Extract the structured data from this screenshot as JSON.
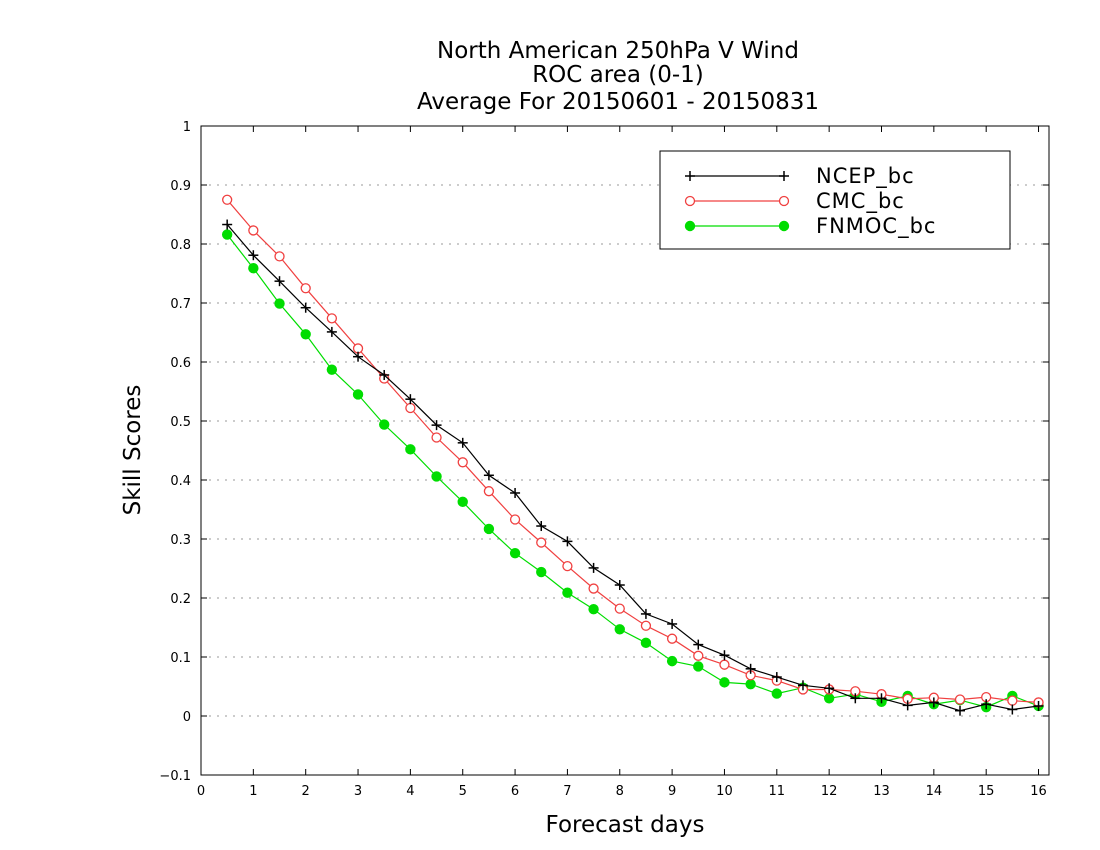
{
  "chart_data": {
    "type": "line",
    "title": [
      "North American 250hPa V Wind",
      "ROC area (0-1)",
      "Average For 20150601 - 20150831"
    ],
    "xlabel": "Forecast days",
    "ylabel": "Skill Scores",
    "xlim": [
      0,
      16.2
    ],
    "ylim": [
      -0.1,
      1
    ],
    "xticks": [
      "0",
      "1",
      "2",
      "3",
      "4",
      "5",
      "6",
      "7",
      "8",
      "9",
      "10",
      "11",
      "12",
      "13",
      "14",
      "15",
      "16"
    ],
    "yticks": [
      "−0.1",
      "0",
      "0.1",
      "0.2",
      "0.3",
      "0.4",
      "0.5",
      "0.6",
      "0.7",
      "0.8",
      "0.9",
      "1"
    ],
    "grid": true,
    "legend_position": "top-right",
    "x": [
      0.5,
      1,
      1.5,
      2,
      2.5,
      3,
      3.5,
      4,
      4.5,
      5,
      5.5,
      6,
      6.5,
      7,
      7.5,
      8,
      8.5,
      9,
      9.5,
      10,
      10.5,
      11,
      11.5,
      12,
      12.5,
      13,
      13.5,
      14,
      14.5,
      15,
      15.5,
      16
    ],
    "series": [
      {
        "name": "NCEP_bc",
        "color": "#000000",
        "marker": "plus",
        "values": [
          0.833,
          0.781,
          0.737,
          0.692,
          0.651,
          0.609,
          0.578,
          0.537,
          0.493,
          0.463,
          0.408,
          0.378,
          0.322,
          0.296,
          0.251,
          0.222,
          0.173,
          0.156,
          0.121,
          0.103,
          0.08,
          0.066,
          0.052,
          0.047,
          0.03,
          0.03,
          0.018,
          0.023,
          0.009,
          0.02,
          0.011,
          0.017
        ]
      },
      {
        "name": "CMC_bc",
        "color": "#f04040",
        "marker": "open-circle",
        "values": [
          0.875,
          0.823,
          0.779,
          0.725,
          0.674,
          0.623,
          0.572,
          0.522,
          0.472,
          0.43,
          0.381,
          0.333,
          0.294,
          0.254,
          0.216,
          0.182,
          0.153,
          0.131,
          0.102,
          0.087,
          0.069,
          0.06,
          0.045,
          0.045,
          0.042,
          0.037,
          0.029,
          0.031,
          0.028,
          0.032,
          0.026,
          0.023
        ]
      },
      {
        "name": "FNMOC_bc",
        "color": "#00dd00",
        "marker": "filled-circle",
        "values": [
          0.816,
          0.759,
          0.699,
          0.647,
          0.587,
          0.545,
          0.494,
          0.452,
          0.406,
          0.363,
          0.317,
          0.276,
          0.244,
          0.209,
          0.181,
          0.147,
          0.124,
          0.093,
          0.084,
          0.057,
          0.054,
          0.038,
          0.048,
          0.03,
          0.037,
          0.024,
          0.034,
          0.02,
          0.027,
          0.015,
          0.034,
          0.017
        ]
      }
    ]
  }
}
